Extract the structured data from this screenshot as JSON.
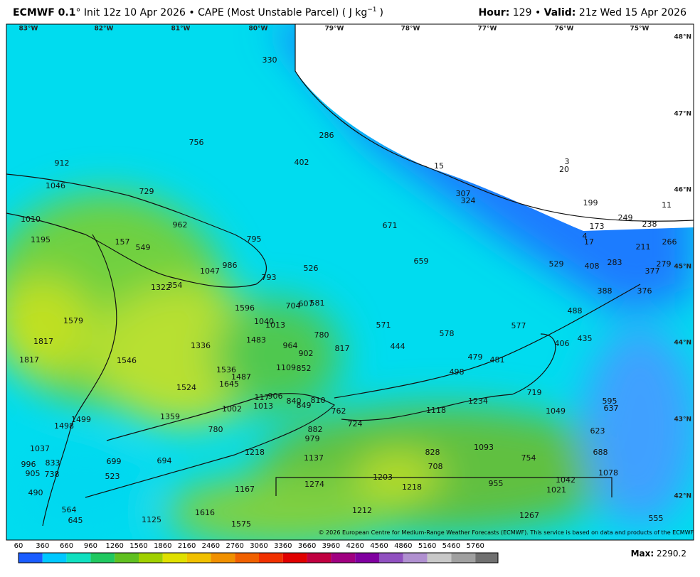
{
  "header": {
    "model": "ECMWF 0.1",
    "description": "° Init 12z 10 Apr 2026 • CAPE (Most Unstable Parcel) ( J kg",
    "unit_exponent": "−1",
    "close": ")",
    "hour_label": "Hour:",
    "hour": "129 •",
    "valid_label": "Valid:",
    "valid": "21z Wed 15 Apr 2026"
  },
  "map": {
    "longitudes": [
      "83°W",
      "82°W",
      "81°W",
      "80°W",
      "79°W",
      "78°W",
      "77°W",
      "76°W",
      "75°W"
    ],
    "latitudes": [
      "48°N",
      "47°N",
      "46°N",
      "45°N",
      "44°N",
      "43°N",
      "42°N"
    ],
    "point_values": [
      330,
      286,
      756,
      402,
      912,
      15,
      3,
      20,
      1046,
      729,
      307,
      324,
      199,
      11,
      1010,
      962,
      671,
      249,
      238,
      173,
      4,
      17,
      266,
      1195,
      157,
      549,
      795,
      211,
      1047,
      986,
      526,
      659,
      529,
      408,
      283,
      279,
      377,
      1322,
      354,
      793,
      388,
      376,
      704,
      607,
      581,
      1596,
      488,
      1579,
      1040,
      1013,
      780,
      571,
      578,
      577,
      435,
      406,
      1817,
      1336,
      1483,
      964,
      902,
      817,
      444,
      479,
      481,
      1817,
      1546,
      1536,
      1109,
      852,
      498,
      1487,
      1645,
      1524,
      719,
      117,
      906,
      840,
      849,
      810,
      1013,
      1002,
      1234,
      595,
      637,
      762,
      1118,
      1049,
      1359,
      1499,
      1498,
      724,
      882,
      780,
      623,
      979,
      1037,
      1218,
      828,
      1093,
      688,
      754,
      996,
      833,
      699,
      694,
      1137,
      708,
      905,
      738,
      523,
      1203,
      1078,
      1042,
      1274,
      955,
      1218,
      1021,
      490,
      1167,
      564,
      1212,
      1616,
      1267,
      645,
      1125,
      555,
      1575
    ],
    "copyright": "© 2026 European Centre for Medium-Range Weather Forecasts (ECMWF). This service is based on data and products of the ECMWF."
  },
  "colorbar": {
    "ticks": [
      60,
      360,
      660,
      960,
      1260,
      1560,
      1860,
      2160,
      2460,
      2760,
      3060,
      3360,
      3660,
      3960,
      4260,
      4560,
      4860,
      5160,
      5460,
      5760
    ],
    "colors": [
      "#1a5cff",
      "#00c8ff",
      "#10e0c0",
      "#20c860",
      "#60c020",
      "#a0d000",
      "#e0e000",
      "#f0c000",
      "#f09000",
      "#f06000",
      "#f03000",
      "#e00000",
      "#c00040",
      "#a00080",
      "#8000a0",
      "#9050c0",
      "#b090d0",
      "#c8c8c8",
      "#a0a0a0",
      "#707070"
    ],
    "max_label": "Max:",
    "max": "2290.2"
  }
}
